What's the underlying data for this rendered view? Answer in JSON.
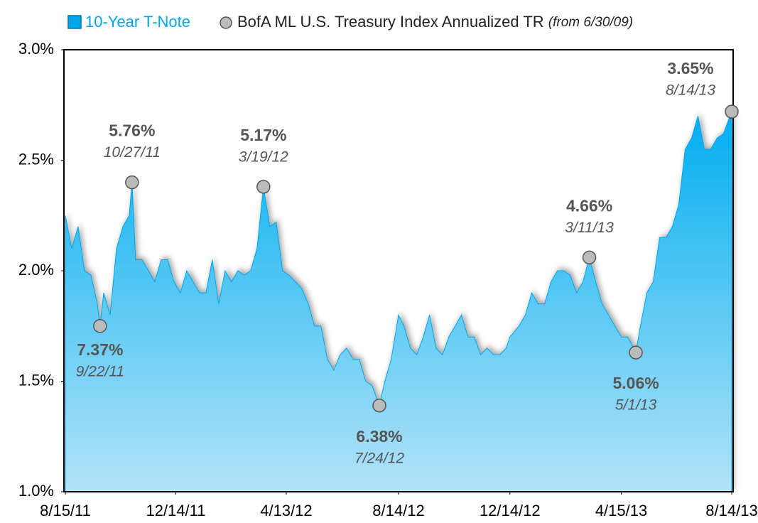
{
  "chart_data": {
    "type": "area",
    "x": [
      "8/15/11",
      "8/22/11",
      "8/29/11",
      "9/5/11",
      "9/12/11",
      "9/19/11",
      "9/22/11",
      "9/26/11",
      "10/3/11",
      "10/10/11",
      "10/17/11",
      "10/24/11",
      "10/27/11",
      "10/31/11",
      "11/7/11",
      "11/14/11",
      "11/21/11",
      "11/28/11",
      "12/5/11",
      "12/12/11",
      "12/19/11",
      "12/26/11",
      "1/2/12",
      "1/9/12",
      "1/16/12",
      "1/23/12",
      "1/30/12",
      "2/6/12",
      "2/13/12",
      "2/20/12",
      "2/27/12",
      "3/5/12",
      "3/12/12",
      "3/19/12",
      "3/26/12",
      "4/2/12",
      "4/9/12",
      "4/16/12",
      "4/23/12",
      "4/30/12",
      "5/7/12",
      "5/14/12",
      "5/21/12",
      "5/28/12",
      "6/4/12",
      "6/11/12",
      "6/18/12",
      "6/25/12",
      "7/2/12",
      "7/9/12",
      "7/16/12",
      "7/24/12",
      "7/30/12",
      "8/6/12",
      "8/14/12",
      "8/20/12",
      "8/27/12",
      "9/3/12",
      "9/10/12",
      "9/17/12",
      "9/24/12",
      "10/1/12",
      "10/8/12",
      "10/15/12",
      "10/22/12",
      "10/29/12",
      "11/5/12",
      "11/12/12",
      "11/19/12",
      "11/26/12",
      "12/3/12",
      "12/10/12",
      "12/14/12",
      "12/24/12",
      "12/31/12",
      "1/7/13",
      "1/14/13",
      "1/21/13",
      "1/28/13",
      "2/4/13",
      "2/11/13",
      "2/18/13",
      "2/25/13",
      "3/4/13",
      "3/11/13",
      "3/18/13",
      "3/25/13",
      "4/1/13",
      "4/8/13",
      "4/15/13",
      "4/22/13",
      "5/1/13",
      "5/6/13",
      "5/13/13",
      "5/20/13",
      "5/27/13",
      "6/3/13",
      "6/10/13",
      "6/17/13",
      "6/24/13",
      "7/1/13",
      "7/8/13",
      "7/15/13",
      "7/22/13",
      "7/29/13",
      "8/5/13",
      "8/14/13"
    ],
    "series": [
      {
        "name": "10-Year T-Note",
        "color": "#00a6e8",
        "values": [
          2.25,
          2.1,
          2.2,
          2.0,
          1.98,
          1.85,
          1.75,
          1.9,
          1.8,
          2.1,
          2.2,
          2.25,
          2.4,
          2.05,
          2.05,
          2.0,
          1.95,
          2.05,
          2.05,
          1.95,
          1.9,
          2.0,
          1.95,
          1.9,
          1.9,
          2.05,
          1.85,
          2.0,
          1.95,
          2.0,
          1.98,
          2.0,
          2.1,
          2.38,
          2.2,
          2.22,
          2.0,
          1.98,
          1.95,
          1.92,
          1.85,
          1.75,
          1.75,
          1.6,
          1.55,
          1.62,
          1.65,
          1.6,
          1.6,
          1.5,
          1.48,
          1.39,
          1.5,
          1.6,
          1.8,
          1.75,
          1.65,
          1.62,
          1.7,
          1.8,
          1.65,
          1.62,
          1.7,
          1.75,
          1.8,
          1.7,
          1.7,
          1.62,
          1.65,
          1.62,
          1.62,
          1.65,
          1.7,
          1.75,
          1.8,
          1.9,
          1.85,
          1.85,
          1.95,
          2.0,
          2.0,
          1.98,
          1.9,
          1.95,
          2.06,
          1.95,
          1.85,
          1.8,
          1.75,
          1.7,
          1.7,
          1.63,
          1.75,
          1.9,
          1.95,
          2.15,
          2.15,
          2.2,
          2.3,
          2.55,
          2.6,
          2.7,
          2.55,
          2.55,
          2.6,
          2.62,
          2.72
        ]
      }
    ],
    "markers": {
      "name": "BofA ML U.S. Treasury Index Annualized TR",
      "note": "(from 6/30/09)",
      "points": [
        {
          "x": "9/22/11",
          "y": 1.75,
          "value": 7.37,
          "label": "7.37%"
        },
        {
          "x": "10/27/11",
          "y": 2.4,
          "value": 5.76,
          "label": "5.76%"
        },
        {
          "x": "3/19/12",
          "y": 2.38,
          "value": 5.17,
          "label": "5.17%"
        },
        {
          "x": "7/24/12",
          "y": 1.39,
          "value": 6.38,
          "label": "6.38%"
        },
        {
          "x": "3/11/13",
          "y": 2.06,
          "value": 4.66,
          "label": "4.66%"
        },
        {
          "x": "5/1/13",
          "y": 1.63,
          "value": 5.06,
          "label": "5.06%"
        },
        {
          "x": "8/14/13",
          "y": 2.72,
          "value": 3.65,
          "label": "3.65%"
        }
      ]
    },
    "xlim": [
      "8/15/11",
      "8/14/13"
    ],
    "xticks": [
      "8/15/11",
      "12/14/11",
      "4/13/12",
      "8/14/12",
      "12/14/12",
      "4/15/13",
      "8/14/13"
    ],
    "ylim": [
      1,
      3
    ],
    "yticks": [
      {
        "value": 1,
        "label": "1.0%"
      },
      {
        "value": 1.5,
        "label": "1.5%"
      },
      {
        "value": 2,
        "label": "2.0%"
      },
      {
        "value": 2.5,
        "label": "2.5%"
      },
      {
        "value": 3,
        "label": "3.0%"
      }
    ]
  }
}
